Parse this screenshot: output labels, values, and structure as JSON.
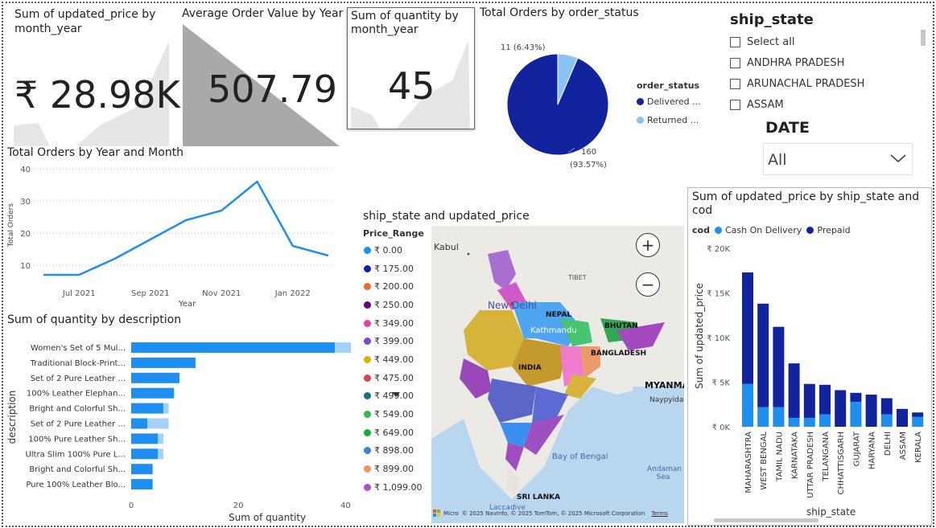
{
  "kpi_price": {
    "title": "Sum of updated_price by month_year",
    "value": "₹ 28.98K"
  },
  "kpi_aov": {
    "title": "Average Order Value by Year",
    "value": "507.79"
  },
  "kpi_qty": {
    "title": "Sum of quantity by month_year",
    "value": "45"
  },
  "pie": {
    "title": "Total Orders by order_status",
    "legend_title": "order_status",
    "slices": [
      {
        "name": "Delivered ...",
        "value": 160,
        "label": "160",
        "pct": "(93.57%)",
        "color": "#12239E"
      },
      {
        "name": "Returned ...",
        "value": 11,
        "label": "11 (6.43%)",
        "color": "#8AC4F5"
      }
    ]
  },
  "slicer_state": {
    "title": "ship_state",
    "items": [
      "Select all",
      "ANDHRA PRADESH",
      "ARUNACHAL PRADESH",
      "ASSAM"
    ]
  },
  "slicer_date": {
    "title": "DATE",
    "value": "All"
  },
  "line_chart": {
    "title": "Total Orders by Year and Month",
    "xlabel": "Year",
    "ylabel": "Total Orders",
    "color": "#1F8EF1"
  },
  "map": {
    "title": "ship_state and updated_price",
    "legend_title": "Price_Range",
    "legend": [
      {
        "label": "₹ 0.00",
        "color": "#1F8EF1"
      },
      {
        "label": "₹ 175.00",
        "color": "#12239E"
      },
      {
        "label": "₹ 200.00",
        "color": "#E66C37"
      },
      {
        "label": "₹ 250.00",
        "color": "#6B007B"
      },
      {
        "label": "₹ 349.00",
        "color": "#E044A7"
      },
      {
        "label": "₹ 399.00",
        "color": "#744EC2"
      },
      {
        "label": "₹ 449.00",
        "color": "#D9B300"
      },
      {
        "label": "₹ 475.00",
        "color": "#D64550"
      },
      {
        "label": "₹ 499.00",
        "color": "#197278"
      },
      {
        "label": "₹ 549.00",
        "color": "#3CB44B"
      },
      {
        "label": "₹ 649.00",
        "color": "#1AAB40"
      },
      {
        "label": "₹ 898.00",
        "color": "#3D82D6"
      },
      {
        "label": "₹ 899.00",
        "color": "#F2945C"
      },
      {
        "label": "₹ 1,099.00",
        "color": "#B14FC5"
      }
    ],
    "places": {
      "kabul": "Kabul",
      "tibet": "TIBET",
      "nepal": "NEPAL",
      "new_delhi": "New Delhi",
      "kathmandu": "Kathmandu",
      "bhutan": "BHUTAN",
      "bangladesh": "BANGLADESH",
      "india": "INDIA",
      "myanmar": "MYANMAR",
      "naypyidaw": "Naypyidaw",
      "bay": "Bay of Bengal",
      "andaman": "Andaman Sea",
      "srilanka": "SRI LANKA",
      "laccadive": "Laccadive"
    },
    "attribution": "© 2025 NavInfo, © 2025 TomTom, © 2025 Microsoft Corporation",
    "terms": "Terms",
    "brand": "Micro"
  },
  "hbar": {
    "title": "Sum of quantity by description",
    "xlabel": "Sum of quantity",
    "ylabel": "description"
  },
  "stacked": {
    "title": "Sum of updated_price by ship_state and cod",
    "legend_title": "cod",
    "xlabel": "ship_state",
    "ylabel": "Sum of updated_price"
  },
  "chart_data": [
    {
      "type": "line",
      "title": "Total Orders by Year and Month",
      "xlabel": "Year",
      "ylabel": "Total Orders",
      "x": [
        "2021-06",
        "2021-07",
        "2021-08",
        "2021-09",
        "2021-10",
        "2021-11",
        "2021-12",
        "2022-01",
        "2022-02"
      ],
      "xticks": [
        "Jul 2021",
        "Sep 2021",
        "Nov 2021",
        "Jan 2022"
      ],
      "series": [
        {
          "values": [
            7,
            7,
            12,
            18,
            24,
            27,
            36,
            16,
            13
          ]
        }
      ],
      "yticks": [
        10,
        20,
        30,
        40
      ],
      "ylim": [
        5,
        40
      ],
      "grid": true
    },
    {
      "type": "bar",
      "title": "Sum of quantity by description",
      "xlabel": "Sum of quantity",
      "ylabel": "description",
      "categories": [
        "Women's Set of 5 Mul...",
        "Traditional Block-Print...",
        "Set of 2 Pure Leather ...",
        "100% Leather Elephan...",
        "Bright and Colorful Sh...",
        "Set of 2 Pure Leather ...",
        "100% Pure Leather Sh...",
        "Ultra Slim 100% Pure L...",
        "Bright and Colorful Sh...",
        "Pure 100% Leather Blo..."
      ],
      "series": [
        {
          "values": [
            38,
            12,
            9,
            8,
            6,
            3,
            5,
            5,
            4,
            4
          ]
        },
        {
          "values": [
            3,
            0,
            0,
            0,
            1,
            4,
            1,
            1,
            0,
            0
          ]
        }
      ],
      "xticks": [
        0,
        20,
        40
      ],
      "xlim": [
        0,
        41
      ]
    },
    {
      "type": "bar",
      "stacked": true,
      "title": "Sum of updated_price by ship_state and cod",
      "xlabel": "ship_state",
      "ylabel": "Sum of updated_price",
      "legend_title": "cod",
      "categories": [
        "MAHARASHTRA",
        "WEST BENGAL",
        "TAMIL NADU",
        "KARNATAKA",
        "UTTAR PRADESH",
        "TELANGANA",
        "CHHATTISGARH",
        "GUJARAT",
        "HARYANA",
        "DELHI",
        "ASSAM",
        "KERALA"
      ],
      "series": [
        {
          "name": "Cash On Delivery",
          "color": "#1F8EF1",
          "values": [
            4800,
            2200,
            2200,
            1000,
            1000,
            1400,
            0,
            2800,
            0,
            1400,
            0,
            1100
          ]
        },
        {
          "name": "Prepaid",
          "color": "#12239E",
          "values": [
            12500,
            11600,
            9000,
            6100,
            3800,
            3300,
            4100,
            1000,
            3600,
            1800,
            2000,
            500
          ]
        }
      ],
      "yticks": [
        "₹ 0K",
        "₹ 5K",
        "₹ 10K",
        "₹ 15K",
        "₹ 20K"
      ],
      "ylim": [
        0,
        20000
      ]
    }
  ]
}
